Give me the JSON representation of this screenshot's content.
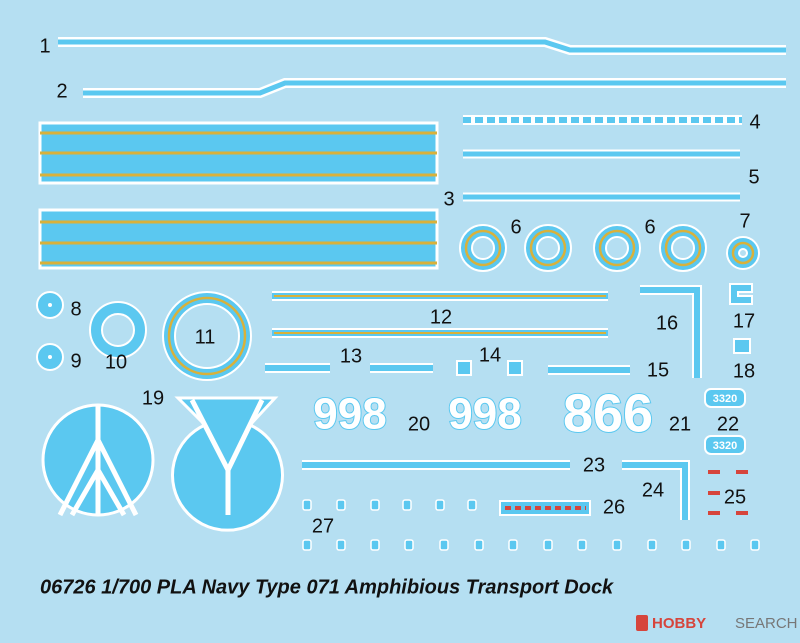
{
  "part_numbers": [
    "1",
    "2",
    "3",
    "4",
    "5",
    "6",
    "6",
    "7",
    "8",
    "9",
    "10",
    "11",
    "12",
    "13",
    "14",
    "15",
    "16",
    "17",
    "18",
    "19",
    "20",
    "21",
    "22",
    "23",
    "24",
    "25",
    "26",
    "27"
  ],
  "decal_texts": [
    "998",
    "998",
    "866",
    "3320",
    "3320"
  ],
  "caption": "06726 1/700 PLA Navy Type 071 Amphibious Transport Dock",
  "watermark": {
    "brand": "HOBBY",
    "search": "SEARCH"
  }
}
